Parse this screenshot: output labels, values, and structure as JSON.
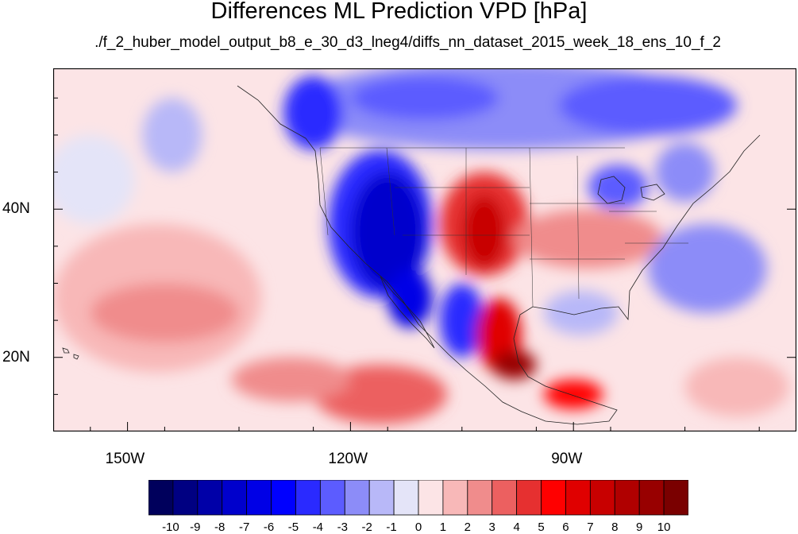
{
  "figure": {
    "title": "Differences ML Prediction VPD [hPa]",
    "subtitle": "./f_2_huber_model_output_b8_e_30_d3_lneg4/diffs_nn_dataset_2015_week_18_ens_10_f_2"
  },
  "map": {
    "projection": "cylindrical-equidistant",
    "lon_range": [
      -160,
      -60
    ],
    "lat_range": [
      10,
      59
    ],
    "lat_ticks": [
      {
        "value": 20,
        "label": "20N"
      },
      {
        "value": 40,
        "label": "40N"
      }
    ],
    "lon_ticks": [
      {
        "value": -150,
        "label": "150W"
      },
      {
        "value": -120,
        "label": "120W"
      },
      {
        "value": -90,
        "label": "90W"
      }
    ],
    "background_level": 0
  },
  "chart_data": {
    "type": "heatmap",
    "title": "Differences ML Prediction VPD [hPa]",
    "units": "hPa",
    "color_levels": [
      -10,
      -9,
      -8,
      -7,
      -6,
      -5,
      -4,
      -3,
      -2,
      -1,
      0,
      1,
      2,
      3,
      4,
      5,
      6,
      7,
      8,
      9,
      10
    ],
    "colors": [
      "#00005c",
      "#000082",
      "#0000a8",
      "#0000cc",
      "#0000e6",
      "#0000ff",
      "#2a2aff",
      "#5c5cff",
      "#8c8cf8",
      "#b8b8f8",
      "#e4e4f8",
      "#fce4e6",
      "#f8b8b8",
      "#f08c8c",
      "#ec6060",
      "#e63030",
      "#ff0000",
      "#e00000",
      "#c80000",
      "#b00000",
      "#980000",
      "#7a0000"
    ],
    "regions": [
      {
        "name": "pacific-broad-positive",
        "level": 1,
        "lon": -146,
        "lat": 28,
        "rlon": 14,
        "rlat": 10
      },
      {
        "name": "hawaii-band-positive",
        "level": 2,
        "lon": -145,
        "lat": 26,
        "rlon": 10,
        "rlat": 4
      },
      {
        "name": "pacific-negative-patch",
        "level": -2,
        "lon": -144,
        "lat": 50,
        "rlon": 4,
        "rlat": 5
      },
      {
        "name": "pacific-neg-west",
        "level": -1,
        "lon": -155,
        "lat": 44,
        "rlon": 6,
        "rlat": 6
      },
      {
        "name": "canada-negative",
        "level": -3,
        "lon": -100,
        "lat": 54,
        "rlon": 28,
        "rlat": 6
      },
      {
        "name": "canada-north-stronger",
        "level": -4,
        "lon": -110,
        "lat": 55,
        "rlon": 10,
        "rlat": 3
      },
      {
        "name": "east-canada-negative",
        "level": -4,
        "lon": -80,
        "lat": 54,
        "rlon": 12,
        "rlat": 4
      },
      {
        "name": "bc-coast-negative",
        "level": -5,
        "lon": -125,
        "lat": 53,
        "rlon": 4,
        "rlat": 5
      },
      {
        "name": "western-us-outer",
        "level": -5,
        "lon": -116,
        "lat": 38,
        "rlon": 7,
        "rlat": 10
      },
      {
        "name": "western-us-core",
        "level": -8,
        "lon": -115,
        "lat": 37,
        "rlon": 5,
        "rlat": 8
      },
      {
        "name": "baja-negative",
        "level": -7,
        "lon": -112,
        "lat": 28,
        "rlon": 3,
        "rlat": 4
      },
      {
        "name": "mexico-plateau-negative",
        "level": -5,
        "lon": -105,
        "lat": 25,
        "rlon": 3,
        "rlat": 5
      },
      {
        "name": "great-plains-outer",
        "level": 4,
        "lon": -102,
        "lat": 38,
        "rlon": 6,
        "rlat": 7
      },
      {
        "name": "great-plains-core",
        "level": 7,
        "lon": -102,
        "lat": 37,
        "rlon": 3,
        "rlat": 5
      },
      {
        "name": "mexico-east-positive",
        "level": 6,
        "lon": -100,
        "lat": 23,
        "rlon": 3,
        "rlat": 5
      },
      {
        "name": "mexico-south-core",
        "level": 9,
        "lon": -98,
        "lat": 19,
        "rlon": 3,
        "rlat": 2
      },
      {
        "name": "central-america-positive",
        "level": 5,
        "lon": -90,
        "lat": 15,
        "rlon": 4,
        "rlat": 2
      },
      {
        "name": "eastern-us-positive",
        "level": 2,
        "lon": -88,
        "lat": 36,
        "rlon": 10,
        "rlat": 4
      },
      {
        "name": "atlantic-negative",
        "level": -3,
        "lon": -72,
        "lat": 32,
        "rlon": 8,
        "rlat": 6
      },
      {
        "name": "gulf-negative",
        "level": -2,
        "lon": -89,
        "lat": 26,
        "rlon": 5,
        "rlat": 3
      },
      {
        "name": "east-pacific-positive",
        "level": 3,
        "lon": -116,
        "lat": 15,
        "rlon": 9,
        "rlat": 4
      },
      {
        "name": "east-pacific-positive-2",
        "level": 2,
        "lon": -128,
        "lat": 17,
        "rlon": 8,
        "rlat": 3
      },
      {
        "name": "great-lakes-negative",
        "level": -4,
        "lon": -84,
        "lat": 43,
        "rlon": 4,
        "rlat": 3
      },
      {
        "name": "northeast-negative",
        "level": -3,
        "lon": -75,
        "lat": 45,
        "rlon": 4,
        "rlat": 4
      },
      {
        "name": "caribbean-positive",
        "level": 1,
        "lon": -68,
        "lat": 16,
        "rlon": 7,
        "rlat": 4
      }
    ]
  }
}
